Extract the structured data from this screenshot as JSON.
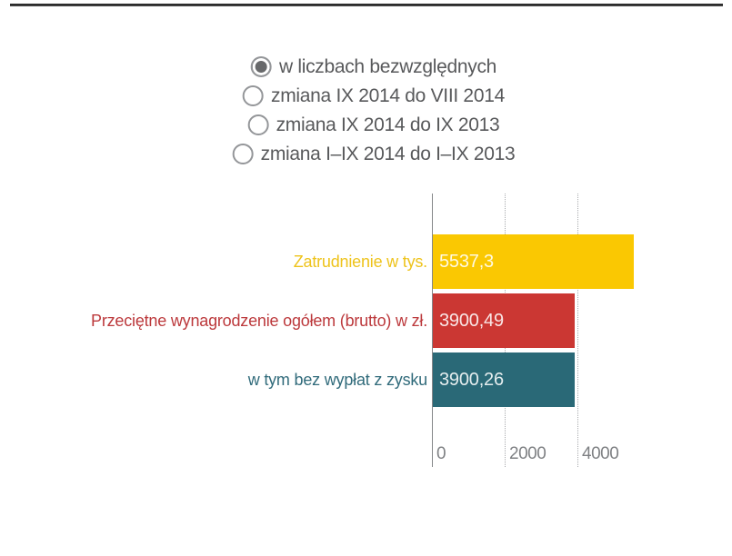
{
  "page": {
    "background": "#ffffff",
    "top_rule_color": "#1f1f1f"
  },
  "radio_group": {
    "options": [
      {
        "label": "w liczbach bezwzględnych",
        "selected": true
      },
      {
        "label": "zmiana IX 2014 do VIII 2014",
        "selected": false
      },
      {
        "label": "zmiana IX 2014 do IX 2013",
        "selected": false
      },
      {
        "label": "zmiana I–IX 2014 do I–IX 2013",
        "selected": false
      }
    ]
  },
  "chart_data": {
    "type": "bar",
    "orientation": "horizontal",
    "title": "",
    "categories": [
      "Zatrudnienie w tys.",
      "Przeciętne wynagrodzenie ogółem (brutto) w zł.",
      "w tym bez wypłat z zysku"
    ],
    "values": [
      5537.3,
      3900.49,
      3900.26
    ],
    "series": [
      {
        "label": "Zatrudnienie w tys.",
        "value": 5537.3,
        "display_value": "5537,3",
        "bar_color": "#fac802",
        "label_color": "#eec31b"
      },
      {
        "label": "Przeciętne wynagrodzenie ogółem (brutto) w zł.",
        "value": 3900.49,
        "display_value": "3900,49",
        "bar_color": "#cb3733",
        "label_color": "#bc393c"
      },
      {
        "label": "w tym bez wypłat z zysku",
        "value": 3900.26,
        "display_value": "3900,26",
        "bar_color": "#2a6977",
        "label_color": "#316b7b"
      }
    ],
    "x_axis": {
      "ticks": [
        0,
        2000,
        4000
      ],
      "tick_labels": [
        "0",
        "2000",
        "4000"
      ],
      "range": [
        0,
        5600
      ],
      "gridlines": "dotted-vertical",
      "zero_line": "solid"
    },
    "value_label_color": "#ffffff",
    "tick_label_color": "#7f8184",
    "legend": "none"
  }
}
